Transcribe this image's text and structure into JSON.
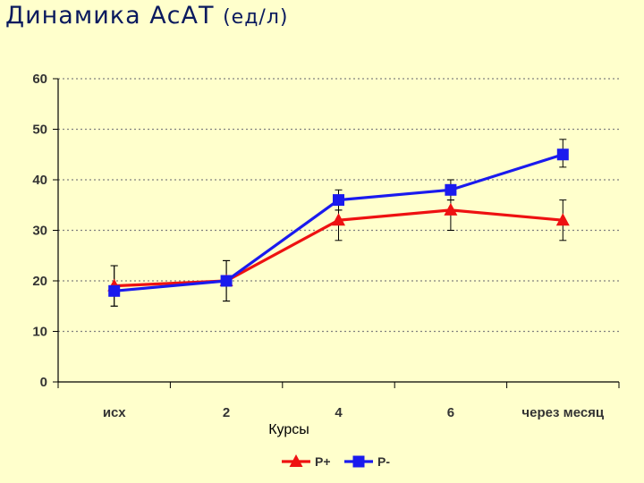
{
  "title": {
    "main": "Динамика АсАТ",
    "unit": "(ед/л)"
  },
  "colors": {
    "background": "#ffffcc",
    "title": "#0a1a5e",
    "series_p_plus": "#ee1111",
    "series_p_minus": "#1a1aee",
    "grid": "#808080"
  },
  "chart_data": {
    "type": "line",
    "title": "Динамика АсАТ (ед/л)",
    "xlabel": "Курсы",
    "ylabel": "",
    "categories": [
      "исх",
      "2",
      "4",
      "6",
      "через месяц"
    ],
    "ylim": [
      0,
      60
    ],
    "yticks": [
      "0",
      "10",
      "20",
      "30",
      "40",
      "50",
      "60"
    ],
    "grid": true,
    "legend_position": "bottom",
    "series": [
      {
        "name": "Р+",
        "marker": "triangle",
        "color": "#ee1111",
        "values": [
          19,
          20,
          32,
          34,
          32
        ],
        "error_upper": [
          23,
          24,
          34,
          36,
          36
        ],
        "error_lower": [
          15,
          16,
          28,
          30,
          28
        ]
      },
      {
        "name": "Р-",
        "marker": "square",
        "color": "#1a1aee",
        "values": [
          18,
          20,
          36,
          38,
          45
        ],
        "error_upper": [
          23,
          24,
          38,
          40,
          48
        ],
        "error_lower": [
          15,
          16,
          34,
          36,
          42.5
        ]
      }
    ]
  }
}
